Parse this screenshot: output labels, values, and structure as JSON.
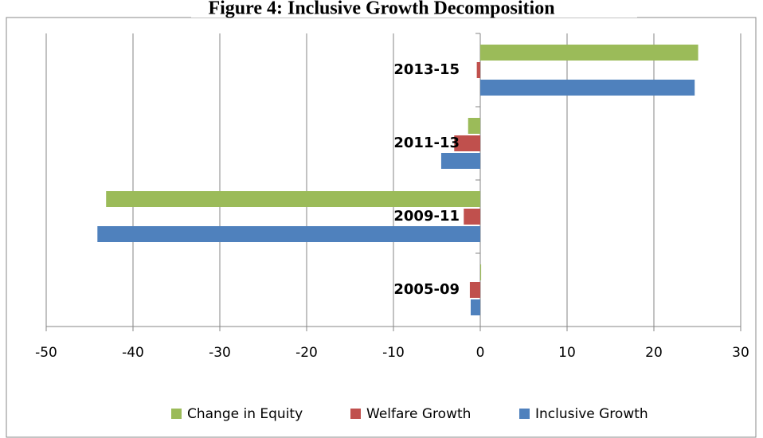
{
  "chart_data": {
    "type": "bar",
    "orientation": "horizontal",
    "title": "Figure 4: Inclusive Growth Decomposition",
    "categories": [
      "2005-09",
      "2009-11",
      "2011-13",
      "2013-15"
    ],
    "series": [
      {
        "name": "Change in Equity",
        "color": "#9bbb59",
        "values": [
          0.1,
          -43.1,
          -1.4,
          25.1
        ]
      },
      {
        "name": "Welfare Growth",
        "color": "#c0504d",
        "values": [
          -1.2,
          -1.9,
          -3.0,
          -0.4
        ]
      },
      {
        "name": "Inclusive Growth",
        "color": "#4f81bd",
        "values": [
          -1.1,
          -44.1,
          -4.5,
          24.7
        ]
      }
    ],
    "xlim": [
      -50,
      30
    ],
    "xticks": [
      -50,
      -40,
      -30,
      -20,
      -10,
      0,
      10,
      20,
      30
    ],
    "grid": true
  }
}
